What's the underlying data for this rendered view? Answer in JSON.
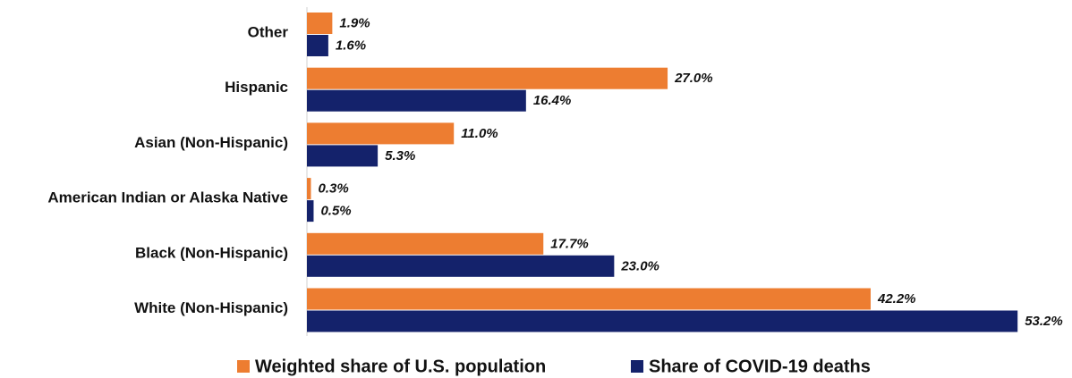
{
  "chart_data": {
    "type": "hbar",
    "categories": [
      "Other",
      "Hispanic",
      "Asian (Non-Hispanic)",
      "American Indian or Alaska Native",
      "Black (Non-Hispanic)",
      "White (Non-Hispanic)"
    ],
    "series": [
      {
        "name": "Weighted share of U.S. population",
        "color": "#ed7d31",
        "values": [
          1.9,
          27.0,
          11.0,
          0.3,
          17.7,
          42.2
        ],
        "value_labels": [
          "1.9%",
          "27.0%",
          "11.0%",
          "0.3%",
          "17.7%",
          "42.2%"
        ]
      },
      {
        "name": "Share of COVID-19 deaths",
        "color": "#14226b",
        "values": [
          1.6,
          16.4,
          5.3,
          0.5,
          23.0,
          53.2
        ],
        "value_labels": [
          "1.6%",
          "16.4%",
          "5.3%",
          "0.5%",
          "23.0%",
          "53.2%"
        ]
      }
    ],
    "xlim": [
      0,
      56
    ],
    "legend": "bottom"
  }
}
